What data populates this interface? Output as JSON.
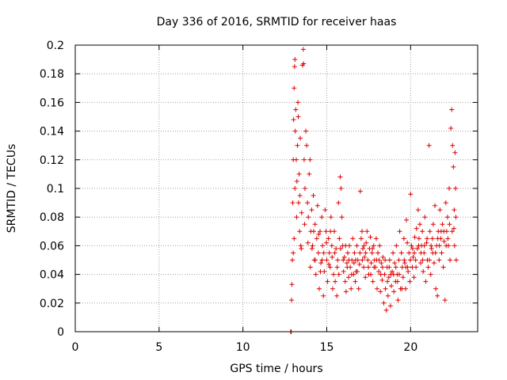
{
  "chart_data": {
    "type": "scatter",
    "title": "Day 336 of 2016, SRMTID for receiver haas",
    "xlabel": "GPS time / hours",
    "ylabel": "SRMTID / TECUs",
    "xlim": [
      0,
      24
    ],
    "ylim": [
      0,
      0.2
    ],
    "grid": true,
    "marker": "plus",
    "color": "#e00000",
    "x_ticks": [
      0,
      5,
      10,
      15,
      20
    ],
    "x_tick_labels": [
      "0",
      "5",
      "10",
      "15",
      "20"
    ],
    "y_ticks": [
      0,
      0.02,
      0.04,
      0.06,
      0.08,
      0.1,
      0.12,
      0.14,
      0.16,
      0.18,
      0.2
    ],
    "y_tick_labels": [
      "0",
      "0.02",
      "0.04",
      "0.06",
      "0.08",
      "0.1",
      "0.12",
      "0.14",
      "0.16",
      "0.18",
      "0.2"
    ],
    "series": [
      {
        "name": "SRMTID",
        "points": [
          [
            12.85,
            0.0
          ],
          [
            12.88,
            0.0
          ],
          [
            12.9,
            0.022
          ],
          [
            12.92,
            0.033
          ],
          [
            12.95,
            0.05
          ],
          [
            12.97,
            0.09
          ],
          [
            13.0,
            0.12
          ],
          [
            13.02,
            0.148
          ],
          [
            13.05,
            0.17
          ],
          [
            13.08,
            0.185
          ],
          [
            13.1,
            0.19
          ],
          [
            13.0,
            0.055
          ],
          [
            13.05,
            0.065
          ],
          [
            13.1,
            0.1
          ],
          [
            13.12,
            0.14
          ],
          [
            13.15,
            0.155
          ],
          [
            13.18,
            0.12
          ],
          [
            13.2,
            0.08
          ],
          [
            13.22,
            0.105
          ],
          [
            13.25,
            0.13
          ],
          [
            13.28,
            0.16
          ],
          [
            13.3,
            0.15
          ],
          [
            13.32,
            0.09
          ],
          [
            13.35,
            0.11
          ],
          [
            13.38,
            0.07
          ],
          [
            13.4,
            0.095
          ],
          [
            13.42,
            0.135
          ],
          [
            13.45,
            0.06
          ],
          [
            13.5,
            0.083
          ],
          [
            13.55,
            0.186
          ],
          [
            13.6,
            0.197
          ],
          [
            13.62,
            0.187
          ],
          [
            13.65,
            0.12
          ],
          [
            13.7,
            0.1
          ],
          [
            13.75,
            0.14
          ],
          [
            13.8,
            0.13
          ],
          [
            13.85,
            0.09
          ],
          [
            13.9,
            0.08
          ],
          [
            13.95,
            0.11
          ],
          [
            14.0,
            0.12
          ],
          [
            14.05,
            0.07
          ],
          [
            14.1,
            0.085
          ],
          [
            14.15,
            0.06
          ],
          [
            14.2,
            0.095
          ],
          [
            14.25,
            0.05
          ],
          [
            14.3,
            0.075
          ],
          [
            14.35,
            0.04
          ],
          [
            14.4,
            0.065
          ],
          [
            14.45,
            0.088
          ],
          [
            14.5,
            0.055
          ],
          [
            14.55,
            0.03
          ],
          [
            14.6,
            0.07
          ],
          [
            14.65,
            0.048
          ],
          [
            14.7,
            0.08
          ],
          [
            14.75,
            0.06
          ],
          [
            14.8,
            0.025
          ],
          [
            14.85,
            0.042
          ],
          [
            14.9,
            0.085
          ],
          [
            14.95,
            0.07
          ],
          [
            15.0,
            0.05
          ],
          [
            15.05,
            0.035
          ],
          [
            15.1,
            0.065
          ],
          [
            15.15,
            0.055
          ],
          [
            15.2,
            0.045
          ],
          [
            15.25,
            0.08
          ],
          [
            15.3,
            0.06
          ],
          [
            15.35,
            0.03
          ],
          [
            15.4,
            0.04
          ],
          [
            15.45,
            0.07
          ],
          [
            15.5,
            0.035
          ],
          [
            15.55,
            0.058
          ],
          [
            15.6,
            0.025
          ],
          [
            15.65,
            0.05
          ],
          [
            15.7,
            0.09
          ],
          [
            15.75,
            0.065
          ],
          [
            15.8,
            0.108
          ],
          [
            15.85,
            0.1
          ],
          [
            15.9,
            0.08
          ],
          [
            15.95,
            0.06
          ],
          [
            16.0,
            0.042
          ],
          [
            16.05,
            0.052
          ],
          [
            16.1,
            0.035
          ],
          [
            16.15,
            0.028
          ],
          [
            16.2,
            0.048
          ],
          [
            16.25,
            0.055
          ],
          [
            16.3,
            0.038
          ],
          [
            16.35,
            0.06
          ],
          [
            16.4,
            0.045
          ],
          [
            16.45,
            0.03
          ],
          [
            16.5,
            0.05
          ],
          [
            16.55,
            0.065
          ],
          [
            16.6,
            0.04
          ],
          [
            16.65,
            0.055
          ],
          [
            16.7,
            0.035
          ],
          [
            16.75,
            0.042
          ],
          [
            16.8,
            0.06
          ],
          [
            16.85,
            0.05
          ],
          [
            16.9,
            0.03
          ],
          [
            16.95,
            0.047
          ],
          [
            17.0,
            0.098
          ],
          [
            17.05,
            0.065
          ],
          [
            17.1,
            0.07
          ],
          [
            17.15,
            0.058
          ],
          [
            17.2,
            0.045
          ],
          [
            17.25,
            0.052
          ],
          [
            17.3,
            0.038
          ],
          [
            17.35,
            0.062
          ],
          [
            17.4,
            0.07
          ],
          [
            17.45,
            0.05
          ],
          [
            17.5,
            0.04
          ],
          [
            17.55,
            0.058
          ],
          [
            17.6,
            0.066
          ],
          [
            17.65,
            0.048
          ],
          [
            17.7,
            0.055
          ],
          [
            17.75,
            0.035
          ],
          [
            17.8,
            0.06
          ],
          [
            17.85,
            0.05
          ],
          [
            17.9,
            0.045
          ],
          [
            17.95,
            0.065
          ],
          [
            18.0,
            0.03
          ],
          [
            18.05,
            0.055
          ],
          [
            18.1,
            0.042
          ],
          [
            18.15,
            0.06
          ],
          [
            18.2,
            0.028
          ],
          [
            18.25,
            0.048
          ],
          [
            18.3,
            0.036
          ],
          [
            18.35,
            0.052
          ],
          [
            18.4,
            0.02
          ],
          [
            18.45,
            0.04
          ],
          [
            18.5,
            0.03
          ],
          [
            18.55,
            0.015
          ],
          [
            18.6,
            0.045
          ],
          [
            18.65,
            0.025
          ],
          [
            18.7,
            0.038
          ],
          [
            18.75,
            0.05
          ],
          [
            18.8,
            0.018
          ],
          [
            18.85,
            0.032
          ],
          [
            18.9,
            0.042
          ],
          [
            18.95,
            0.055
          ],
          [
            19.0,
            0.028
          ],
          [
            19.05,
            0.048
          ],
          [
            19.1,
            0.035
          ],
          [
            19.15,
            0.06
          ],
          [
            19.2,
            0.04
          ],
          [
            19.25,
            0.022
          ],
          [
            19.3,
            0.05
          ],
          [
            19.35,
            0.07
          ],
          [
            19.4,
            0.03
          ],
          [
            19.45,
            0.055
          ],
          [
            19.5,
            0.045
          ],
          [
            19.55,
            0.038
          ],
          [
            19.6,
            0.065
          ],
          [
            19.65,
            0.048
          ],
          [
            19.7,
            0.03
          ],
          [
            19.75,
            0.078
          ],
          [
            19.8,
            0.062
          ],
          [
            19.85,
            0.042
          ],
          [
            19.9,
            0.055
          ],
          [
            19.95,
            0.035
          ],
          [
            20.0,
            0.096
          ],
          [
            20.05,
            0.06
          ],
          [
            20.1,
            0.045
          ],
          [
            20.15,
            0.052
          ],
          [
            20.2,
            0.038
          ],
          [
            20.25,
            0.066
          ],
          [
            20.3,
            0.05
          ],
          [
            20.35,
            0.072
          ],
          [
            20.4,
            0.058
          ],
          [
            20.45,
            0.085
          ],
          [
            20.5,
            0.065
          ],
          [
            20.55,
            0.075
          ],
          [
            20.6,
            0.048
          ],
          [
            20.65,
            0.06
          ],
          [
            20.7,
            0.07
          ],
          [
            20.75,
            0.042
          ],
          [
            20.8,
            0.055
          ],
          [
            20.85,
            0.08
          ],
          [
            20.9,
            0.035
          ],
          [
            20.95,
            0.062
          ],
          [
            21.0,
            0.05
          ],
          [
            21.05,
            0.045
          ],
          [
            21.1,
            0.13
          ],
          [
            21.15,
            0.07
          ],
          [
            21.2,
            0.04
          ],
          [
            21.25,
            0.058
          ],
          [
            21.3,
            0.065
          ],
          [
            21.35,
            0.075
          ],
          [
            21.4,
            0.048
          ],
          [
            21.45,
            0.088
          ],
          [
            21.5,
            0.03
          ],
          [
            21.55,
            0.06
          ],
          [
            21.6,
            0.025
          ],
          [
            21.65,
            0.07
          ],
          [
            21.7,
            0.05
          ],
          [
            21.75,
            0.085
          ],
          [
            21.8,
            0.065
          ],
          [
            21.85,
            0.055
          ],
          [
            21.9,
            0.075
          ],
          [
            21.95,
            0.045
          ],
          [
            22.0,
            0.063
          ],
          [
            22.05,
            0.022
          ],
          [
            22.1,
            0.09
          ],
          [
            22.15,
            0.07
          ],
          [
            22.2,
            0.08
          ],
          [
            22.25,
            0.06
          ],
          [
            22.3,
            0.1
          ],
          [
            22.35,
            0.05
          ],
          [
            22.4,
            0.142
          ],
          [
            22.45,
            0.155
          ],
          [
            22.5,
            0.13
          ],
          [
            22.55,
            0.115
          ],
          [
            22.6,
            0.085
          ],
          [
            22.62,
            0.06
          ],
          [
            22.65,
            0.125
          ],
          [
            22.68,
            0.1
          ],
          [
            22.7,
            0.08
          ],
          [
            22.72,
            0.05
          ],
          [
            14.02,
            0.045
          ],
          [
            14.22,
            0.07
          ],
          [
            14.52,
            0.068
          ],
          [
            14.72,
            0.05
          ],
          [
            14.98,
            0.062
          ],
          [
            15.22,
            0.07
          ],
          [
            15.48,
            0.055
          ],
          [
            15.72,
            0.04
          ],
          [
            15.98,
            0.05
          ],
          [
            16.22,
            0.045
          ],
          [
            16.48,
            0.04
          ],
          [
            16.72,
            0.05
          ],
          [
            16.98,
            0.055
          ],
          [
            17.22,
            0.06
          ],
          [
            17.48,
            0.045
          ],
          [
            17.72,
            0.058
          ],
          [
            17.98,
            0.05
          ],
          [
            18.22,
            0.04
          ],
          [
            18.48,
            0.05
          ],
          [
            18.72,
            0.045
          ],
          [
            18.98,
            0.04
          ],
          [
            19.22,
            0.035
          ],
          [
            19.48,
            0.03
          ],
          [
            19.72,
            0.045
          ],
          [
            19.98,
            0.05
          ],
          [
            20.22,
            0.055
          ],
          [
            20.48,
            0.06
          ],
          [
            20.72,
            0.05
          ],
          [
            20.98,
            0.065
          ],
          [
            21.22,
            0.06
          ],
          [
            21.48,
            0.055
          ],
          [
            21.72,
            0.06
          ],
          [
            21.98,
            0.07
          ],
          [
            22.22,
            0.065
          ],
          [
            22.48,
            0.07
          ],
          [
            13.48,
            0.058
          ],
          [
            13.68,
            0.075
          ],
          [
            13.88,
            0.062
          ],
          [
            14.12,
            0.058
          ],
          [
            14.32,
            0.05
          ],
          [
            14.62,
            0.042
          ],
          [
            14.82,
            0.055
          ],
          [
            15.12,
            0.047
          ],
          [
            15.32,
            0.052
          ],
          [
            15.62,
            0.045
          ],
          [
            15.82,
            0.058
          ],
          [
            16.12,
            0.06
          ],
          [
            16.32,
            0.05
          ],
          [
            16.62,
            0.048
          ],
          [
            16.82,
            0.042
          ],
          [
            17.12,
            0.05
          ],
          [
            17.32,
            0.055
          ],
          [
            17.62,
            0.04
          ],
          [
            17.82,
            0.045
          ],
          [
            18.12,
            0.05
          ],
          [
            18.32,
            0.045
          ],
          [
            18.62,
            0.035
          ],
          [
            18.82,
            0.04
          ],
          [
            19.12,
            0.045
          ],
          [
            19.32,
            0.04
          ],
          [
            19.62,
            0.05
          ],
          [
            19.82,
            0.045
          ],
          [
            20.12,
            0.058
          ],
          [
            20.32,
            0.045
          ],
          [
            20.62,
            0.055
          ],
          [
            20.82,
            0.06
          ],
          [
            21.12,
            0.05
          ],
          [
            21.32,
            0.055
          ],
          [
            21.62,
            0.065
          ],
          [
            21.82,
            0.07
          ],
          [
            22.12,
            0.06
          ],
          [
            22.32,
            0.075
          ],
          [
            22.58,
            0.072
          ]
        ]
      }
    ]
  }
}
